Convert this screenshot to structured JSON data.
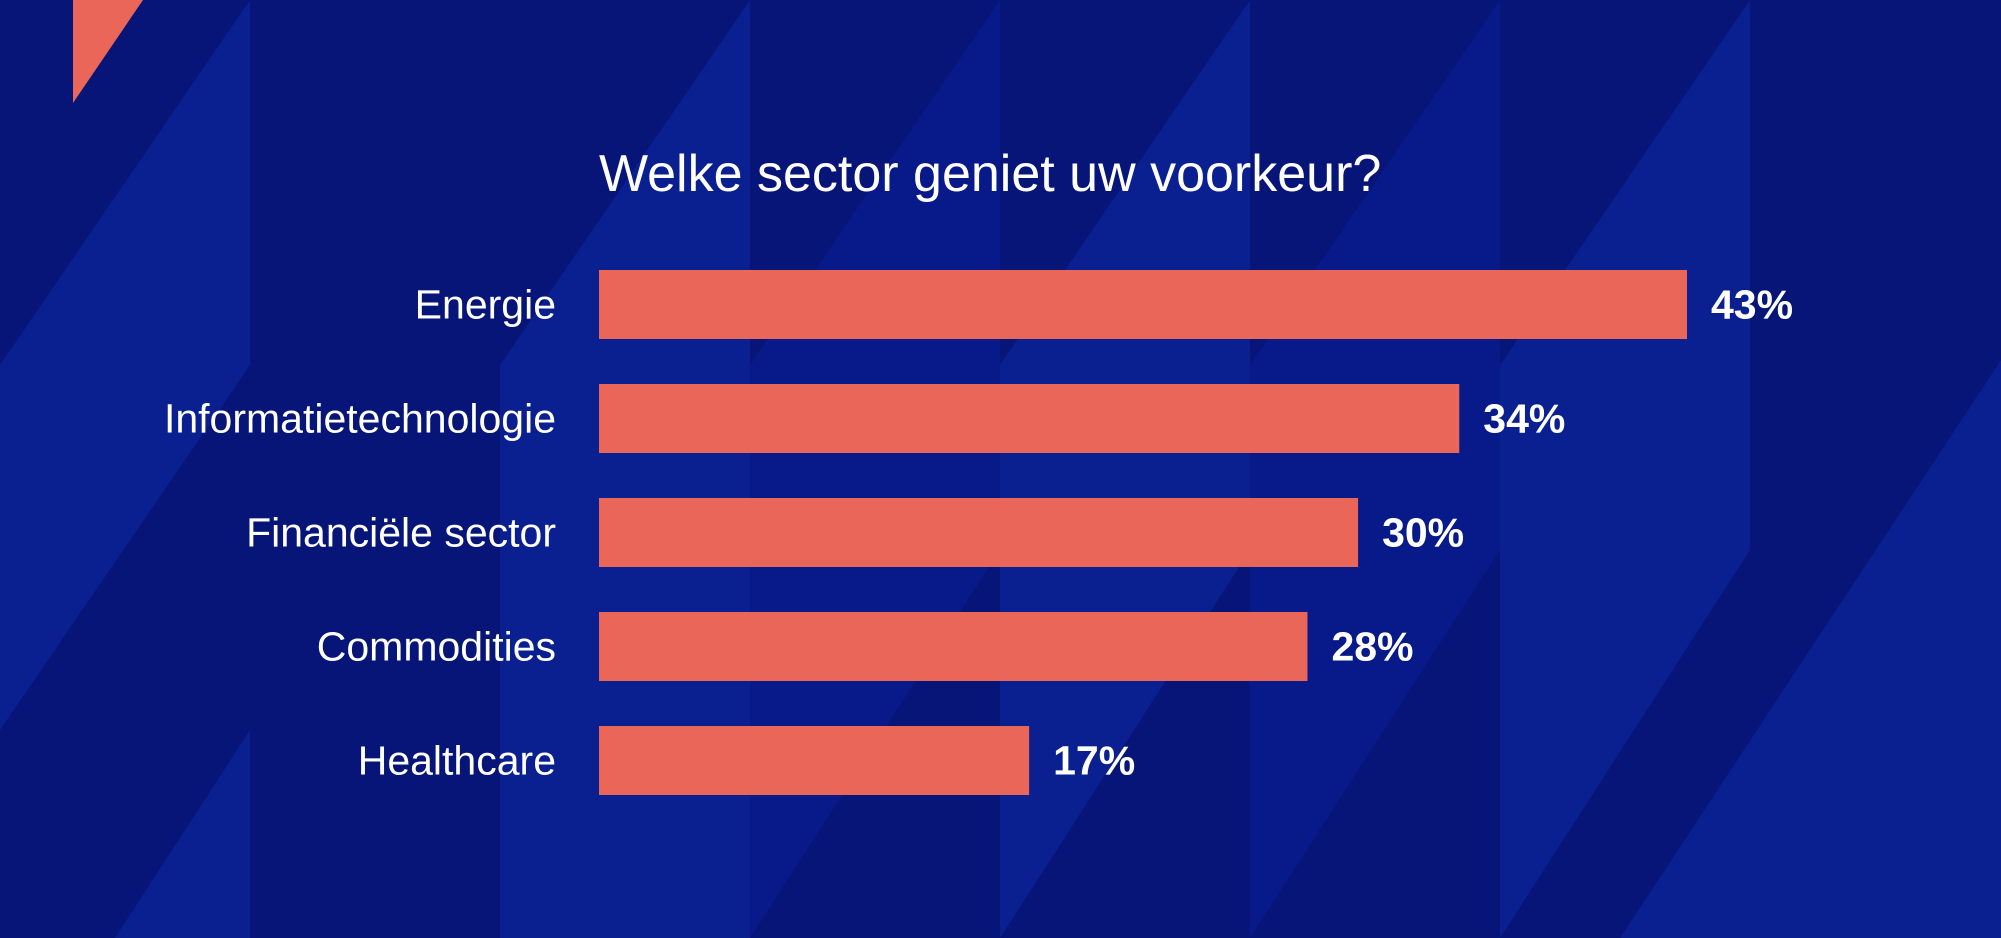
{
  "colors": {
    "background": "#061577",
    "stripe": "#0a2090",
    "bar": "#ea6659",
    "text": "#ffffff"
  },
  "chart_data": {
    "type": "bar",
    "orientation": "horizontal",
    "title": "Welke sector geniet uw voorkeur?",
    "categories": [
      "Energie",
      "Informatietechnologie",
      "Financiële sector",
      "Commodities",
      "Healthcare"
    ],
    "values": [
      43,
      34,
      30,
      28,
      17
    ],
    "value_labels": [
      "43%",
      "34%",
      "30%",
      "28%",
      "17%"
    ],
    "unit": "%",
    "xlim": [
      0,
      43
    ],
    "grid": false,
    "legend": "none"
  }
}
